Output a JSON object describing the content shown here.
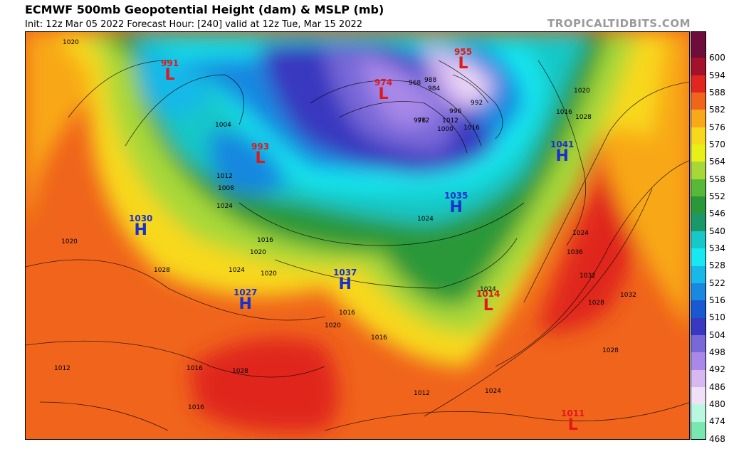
{
  "header": {
    "title": "ECMWF 500mb Geopotential Height (dam) & MSLP (mb)",
    "subtitle": "Init: 12z Mar 05 2022   Forecast Hour: [240]   valid at 12z Tue, Mar 15 2022",
    "brand": "TROPICALTIDBITS.COM"
  },
  "colorbar": {
    "levels": [
      "600",
      "594",
      "588",
      "582",
      "576",
      "570",
      "564",
      "558",
      "552",
      "546",
      "540",
      "534",
      "528",
      "522",
      "516",
      "510",
      "504",
      "498",
      "492",
      "486",
      "480",
      "474",
      "468"
    ],
    "colors": [
      "#6e0c3c",
      "#a4112a",
      "#e0261e",
      "#f0641c",
      "#f8a818",
      "#f8d81c",
      "#e8f018",
      "#a8d838",
      "#58b838",
      "#2a9838",
      "#1a9868",
      "#18c8c8",
      "#18e8f0",
      "#18b8e8",
      "#1888e0",
      "#1858d0",
      "#3838c0",
      "#7868d8",
      "#a888e8",
      "#d8b8f0",
      "#f0e0f8",
      "#b8f8e0",
      "#78e8b0"
    ]
  },
  "map_labels": {
    "highs": [
      {
        "value": "1030",
        "symbol": "H"
      },
      {
        "value": "1027",
        "symbol": "H"
      },
      {
        "value": "1037",
        "symbol": "H"
      },
      {
        "value": "1035",
        "symbol": "H"
      },
      {
        "value": "1041",
        "symbol": "H"
      }
    ],
    "lows": [
      {
        "value": "991",
        "symbol": "L"
      },
      {
        "value": "993",
        "symbol": "L"
      },
      {
        "value": "974",
        "symbol": "L"
      },
      {
        "value": "955",
        "symbol": "L"
      },
      {
        "value": "1014",
        "symbol": "L"
      },
      {
        "value": "1011",
        "symbol": "L"
      }
    ],
    "isobars": [
      "1020",
      "1020",
      "1012",
      "1016",
      "1016",
      "1012",
      "1004",
      "1008",
      "1016",
      "1024",
      "1028",
      "1020",
      "1016",
      "1028",
      "1024",
      "1020",
      "1024",
      "1016",
      "1012",
      "1016",
      "1020",
      "1028",
      "1024",
      "1036",
      "1032",
      "1024",
      "1028",
      "1032",
      "1028",
      "1024",
      "1020",
      "1016",
      "1012",
      "1000",
      "996",
      "992",
      "988",
      "984",
      "968",
      "976",
      "972"
    ]
  },
  "colors": {
    "high_text": "#1a2fd0",
    "low_text": "#e01818",
    "brand": "#9a9a9a"
  }
}
